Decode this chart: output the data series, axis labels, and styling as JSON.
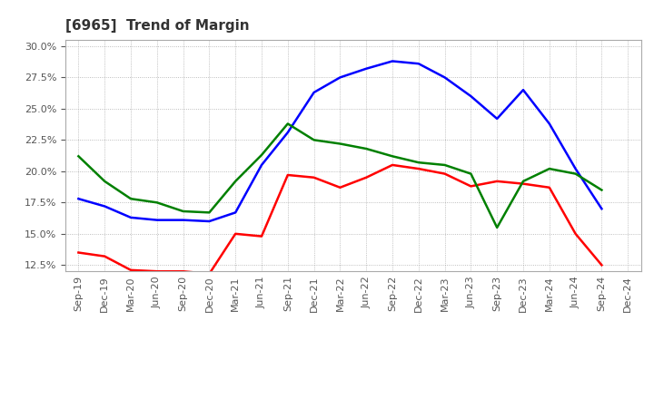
{
  "title": "[6965]  Trend of Margin",
  "x_labels": [
    "Sep-19",
    "Dec-19",
    "Mar-20",
    "Jun-20",
    "Sep-20",
    "Dec-20",
    "Mar-21",
    "Jun-21",
    "Sep-21",
    "Dec-21",
    "Mar-22",
    "Jun-22",
    "Sep-22",
    "Dec-22",
    "Mar-23",
    "Jun-23",
    "Sep-23",
    "Dec-23",
    "Mar-24",
    "Jun-24",
    "Sep-24",
    "Dec-24"
  ],
  "ordinary_income": [
    17.8,
    17.2,
    16.3,
    16.1,
    16.1,
    16.0,
    16.7,
    20.5,
    23.1,
    26.3,
    27.5,
    28.2,
    28.8,
    28.6,
    27.5,
    26.0,
    24.2,
    26.5,
    23.8,
    20.2,
    17.0,
    null
  ],
  "net_income": [
    13.5,
    13.2,
    12.1,
    12.0,
    12.0,
    11.8,
    15.0,
    14.8,
    19.7,
    19.5,
    18.7,
    19.5,
    20.5,
    20.2,
    19.8,
    18.8,
    19.2,
    19.0,
    18.7,
    15.0,
    12.5,
    null
  ],
  "operating_cashflow": [
    21.2,
    19.2,
    17.8,
    17.5,
    16.8,
    16.7,
    19.2,
    21.3,
    23.8,
    22.5,
    22.2,
    21.8,
    21.2,
    20.7,
    20.5,
    19.8,
    15.5,
    19.2,
    20.2,
    19.8,
    18.5,
    null
  ],
  "ylim": [
    12.0,
    30.5
  ],
  "yticks": [
    12.5,
    15.0,
    17.5,
    20.0,
    22.5,
    25.0,
    27.5,
    30.0
  ],
  "line_color_oi": "#0000FF",
  "line_color_ni": "#FF0000",
  "line_color_ocf": "#008000",
  "bg_color": "#FFFFFF",
  "plot_bg_color": "#FFFFFF",
  "grid_color": "#888888",
  "title_color": "#333333",
  "title_fontsize": 11,
  "tick_fontsize": 8,
  "legend_fontsize": 9,
  "linewidth": 1.8
}
